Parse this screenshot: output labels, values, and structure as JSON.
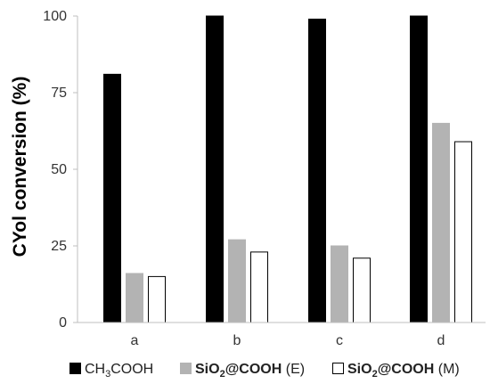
{
  "chart_data": {
    "type": "bar",
    "title": "",
    "xlabel": "",
    "ylabel": "CYol conversion (%)",
    "ylim": [
      0,
      100
    ],
    "yticks": [
      0,
      25,
      50,
      75,
      100
    ],
    "grid": false,
    "legend_position": "bottom",
    "categories": [
      "a",
      "b",
      "c",
      "d"
    ],
    "series": [
      {
        "name": "CH3COOH",
        "legend": {
          "main": "CH",
          "sub1": "3",
          "mid": "COOH",
          "sub2": "",
          "tail": ""
        },
        "fill": "#000000",
        "stroke": "#000000",
        "values": [
          81,
          100,
          99,
          100
        ]
      },
      {
        "name": "SiO2@COOH (E)",
        "legend": {
          "main": "SiO",
          "sub1": "2",
          "mid": "@COOH",
          "sub2": "",
          "tail": " (E)"
        },
        "fill": "#b3b3b3",
        "stroke": "#b3b3b3",
        "values": [
          16,
          27,
          25,
          65
        ]
      },
      {
        "name": "SiO2@COOH (M)",
        "legend": {
          "main": "SiO",
          "sub1": "2",
          "mid": "@COOH",
          "sub2": "",
          "tail": " (M)"
        },
        "fill": "#ffffff",
        "stroke": "#000000",
        "values": [
          15,
          23,
          21,
          59
        ]
      }
    ]
  }
}
